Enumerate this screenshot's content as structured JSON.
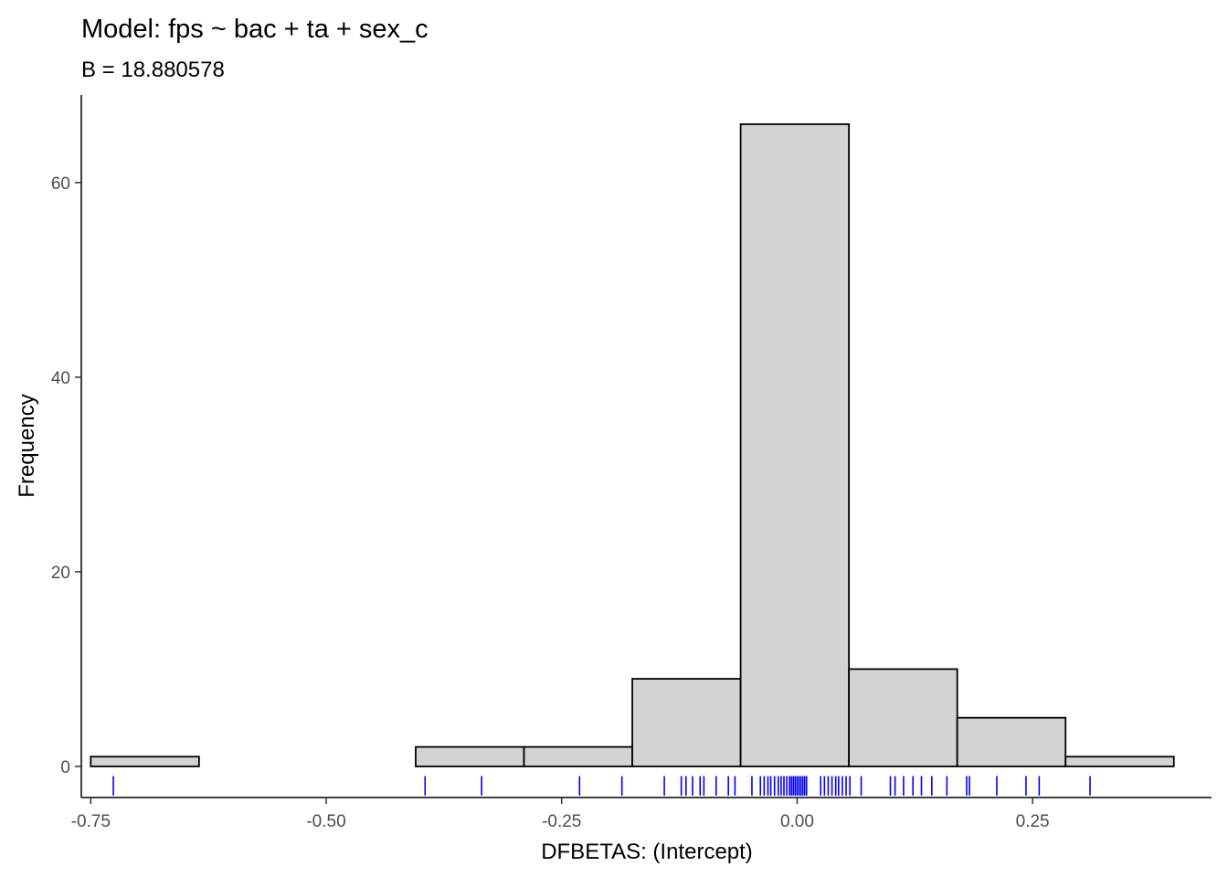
{
  "chart_data": {
    "type": "histogram",
    "title": "Model: fps ~ bac + ta + sex_c",
    "subtitle": "B = 18.880578",
    "xlabel": "DFBETAS: (Intercept)",
    "ylabel": "Frequency",
    "xlim": [
      -0.76,
      0.44
    ],
    "ylim": [
      -3.2,
      69
    ],
    "x_ticks": [
      -0.75,
      -0.5,
      -0.25,
      0.0,
      0.25
    ],
    "x_tick_labels": [
      "-0.75",
      "-0.50",
      "-0.25",
      "0.00",
      "0.25"
    ],
    "y_ticks": [
      0,
      20,
      40,
      60
    ],
    "y_tick_labels": [
      "0",
      "20",
      "40",
      "60"
    ],
    "bins": [
      {
        "x0": -0.75,
        "x1": -0.635,
        "count": 1
      },
      {
        "x0": -0.635,
        "x1": -0.52,
        "count": 0
      },
      {
        "x0": -0.52,
        "x1": -0.405,
        "count": 0
      },
      {
        "x0": -0.405,
        "x1": -0.29,
        "count": 2
      },
      {
        "x0": -0.29,
        "x1": -0.175,
        "count": 2
      },
      {
        "x0": -0.175,
        "x1": -0.06,
        "count": 9
      },
      {
        "x0": -0.06,
        "x1": 0.055,
        "count": 66
      },
      {
        "x0": 0.055,
        "x1": 0.17,
        "count": 10
      },
      {
        "x0": 0.17,
        "x1": 0.285,
        "count": 5
      },
      {
        "x0": 0.285,
        "x1": 0.4,
        "count": 1
      }
    ],
    "rug": [
      -0.726,
      -0.395,
      -0.335,
      -0.231,
      -0.186,
      -0.141,
      -0.123,
      -0.118,
      -0.111,
      -0.103,
      -0.099,
      -0.086,
      -0.073,
      -0.066,
      -0.048,
      -0.039,
      -0.035,
      -0.031,
      -0.028,
      -0.024,
      -0.02,
      -0.017,
      -0.014,
      -0.011,
      -0.008,
      -0.006,
      -0.004,
      -0.002,
      0.0,
      0.002,
      0.004,
      0.006,
      0.008,
      0.01,
      0.025,
      0.029,
      0.033,
      0.037,
      0.041,
      0.044,
      0.048,
      0.052,
      0.056,
      0.068,
      0.099,
      0.104,
      0.113,
      0.123,
      0.132,
      0.143,
      0.159,
      0.18,
      0.183,
      0.212,
      0.243,
      0.257,
      0.311
    ],
    "colors": {
      "fill": "#d3d3d3",
      "outline": "#000000",
      "rug": "#0000ff",
      "axis": "#000000"
    },
    "grid": false,
    "legend": "none"
  }
}
